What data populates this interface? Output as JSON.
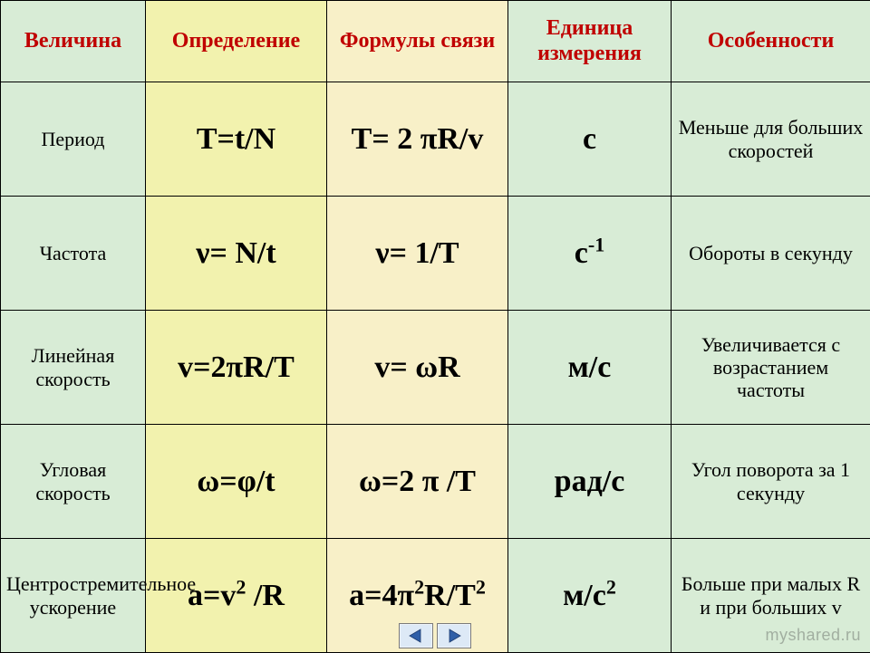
{
  "colors": {
    "header_text": "#c00000",
    "col_name_bg": "#d8ecd6",
    "col_def_bg": "#f2f2ae",
    "col_formula_bg": "#f8f0c8",
    "col_unit_bg": "#d8ecd6",
    "col_note_bg": "#d8ecd6",
    "border": "#000000",
    "nav_bg": "#dde9f6",
    "nav_arrow": "#2f5fa8"
  },
  "fonts": {
    "header_size_pt": 18,
    "name_size_pt": 16,
    "formula_size_pt": 26,
    "unit_size_pt": 26,
    "note_size_pt": 16
  },
  "pi": "π",
  "nu": "ν",
  "omega": "ω",
  "phi": "φ",
  "header": {
    "c1": "Величина",
    "c2": "Определение",
    "c3": "Формулы связи",
    "c4": "Единица измерения",
    "c5": "Особенности"
  },
  "rows": [
    {
      "name": "Период",
      "def_html": "T=t/N",
      "formula_html": "T= 2 πR/v",
      "unit_html": "с",
      "note": "Меньше для больших скоростей"
    },
    {
      "name": "Частота",
      "def_html": "ν= N/t",
      "formula_html": "ν= 1/T",
      "unit_html": "с<sup>-1</sup>",
      "note": "Обороты в секунду"
    },
    {
      "name": "Линейная скорость",
      "def_html": "v=2πR/T",
      "formula_html": "v= ωR",
      "unit_html": "м/с",
      "note": "Увеличивается с возрастанием частоты"
    },
    {
      "name": "Угловая скорость",
      "def_html": "ω=φ/t",
      "formula_html": "ω=2 π /T",
      "unit_html": "рад/с",
      "note": "Угол поворота за 1 секунду"
    },
    {
      "name": "Центростремительное ускорение",
      "def_html": "a=v<sup>2</sup> /R",
      "formula_html": "a=4π<sup>2</sup>R/T<sup>2</sup>",
      "unit_html": "м/с<sup>2</sup>",
      "note": "Больше при малых R и при больших v"
    }
  ],
  "watermark": "myshared.ru"
}
